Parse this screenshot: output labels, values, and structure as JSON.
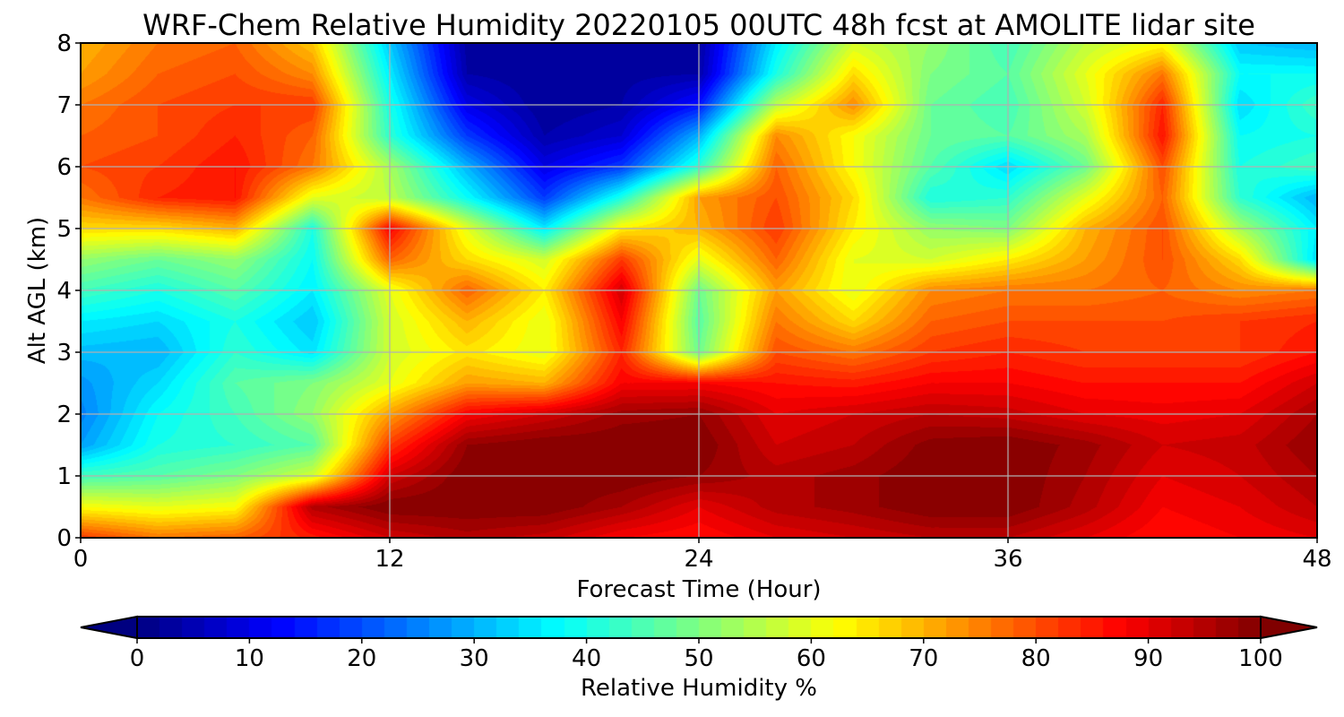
{
  "chart_data": {
    "type": "heatmap",
    "title": "WRF-Chem Relative Humidity 20220105 00UTC 48h fcst at AMOLITE lidar site",
    "xlabel": "Forecast Time (Hour)",
    "ylabel": "Alt AGL (km)",
    "xlim": [
      0,
      48
    ],
    "ylim": [
      0,
      8
    ],
    "xticks": [
      0,
      12,
      24,
      36,
      48
    ],
    "yticks": [
      0,
      1,
      2,
      3,
      4,
      5,
      6,
      7,
      8
    ],
    "grid": true,
    "colormap": "jet",
    "colorbar": {
      "label": "Relative Humidity %",
      "min": 0,
      "max": 100,
      "ticks": [
        0,
        10,
        20,
        30,
        40,
        50,
        60,
        70,
        80,
        90,
        100
      ],
      "extend": "both",
      "orientation": "horizontal",
      "placement": "bottom"
    },
    "x": [
      0,
      3,
      6,
      9,
      12,
      15,
      18,
      21,
      24,
      27,
      30,
      33,
      36,
      39,
      42,
      45,
      48
    ],
    "y": [
      0,
      0.5,
      1,
      1.5,
      2,
      2.5,
      3,
      3.5,
      4,
      4.5,
      5,
      5.5,
      6,
      6.5,
      7,
      7.5,
      8
    ],
    "z": [
      [
        82,
        76,
        78,
        85,
        92,
        95,
        93,
        88,
        86,
        90,
        92,
        94,
        94,
        90,
        86,
        88,
        90
      ],
      [
        62,
        60,
        62,
        95,
        100,
        100,
        100,
        96,
        90,
        95,
        97,
        100,
        100,
        95,
        88,
        90,
        94
      ],
      [
        44,
        46,
        50,
        58,
        92,
        100,
        100,
        100,
        98,
        95,
        97,
        100,
        100,
        96,
        90,
        92,
        96
      ],
      [
        28,
        40,
        42,
        46,
        82,
        98,
        100,
        100,
        100,
        92,
        94,
        99,
        100,
        97,
        92,
        93,
        98
      ],
      [
        25,
        38,
        44,
        52,
        72,
        88,
        92,
        97,
        98,
        90,
        92,
        94,
        93,
        90,
        89,
        90,
        96
      ],
      [
        27,
        34,
        46,
        50,
        60,
        72,
        70,
        88,
        88,
        86,
        85,
        88,
        88,
        86,
        86,
        86,
        92
      ],
      [
        31,
        30,
        42,
        35,
        58,
        65,
        60,
        84,
        48,
        80,
        76,
        82,
        84,
        82,
        82,
        82,
        86
      ],
      [
        36,
        34,
        40,
        32,
        58,
        70,
        60,
        88,
        46,
        76,
        66,
        78,
        80,
        80,
        80,
        82,
        84
      ],
      [
        44,
        40,
        46,
        36,
        60,
        78,
        64,
        92,
        48,
        72,
        60,
        74,
        76,
        76,
        78,
        74,
        76
      ],
      [
        52,
        48,
        52,
        38,
        78,
        66,
        58,
        82,
        60,
        78,
        60,
        58,
        64,
        72,
        80,
        66,
        34
      ],
      [
        66,
        66,
        70,
        40,
        88,
        60,
        36,
        64,
        70,
        82,
        64,
        52,
        50,
        70,
        80,
        54,
        36
      ],
      [
        76,
        84,
        86,
        60,
        56,
        38,
        18,
        40,
        72,
        80,
        66,
        40,
        42,
        60,
        78,
        42,
        30
      ],
      [
        80,
        82,
        86,
        76,
        54,
        30,
        10,
        18,
        42,
        78,
        62,
        46,
        34,
        48,
        80,
        40,
        44
      ],
      [
        78,
        80,
        84,
        78,
        42,
        18,
        4,
        8,
        30,
        74,
        62,
        48,
        46,
        54,
        86,
        38,
        40
      ],
      [
        76,
        80,
        82,
        82,
        40,
        10,
        2,
        4,
        14,
        56,
        74,
        48,
        44,
        58,
        84,
        34,
        44
      ],
      [
        72,
        78,
        80,
        74,
        36,
        4,
        2,
        3,
        4,
        40,
        66,
        50,
        46,
        60,
        76,
        38,
        38
      ],
      [
        70,
        76,
        78,
        68,
        32,
        3,
        2,
        2,
        3,
        36,
        58,
        52,
        44,
        56,
        62,
        32,
        30
      ]
    ]
  }
}
